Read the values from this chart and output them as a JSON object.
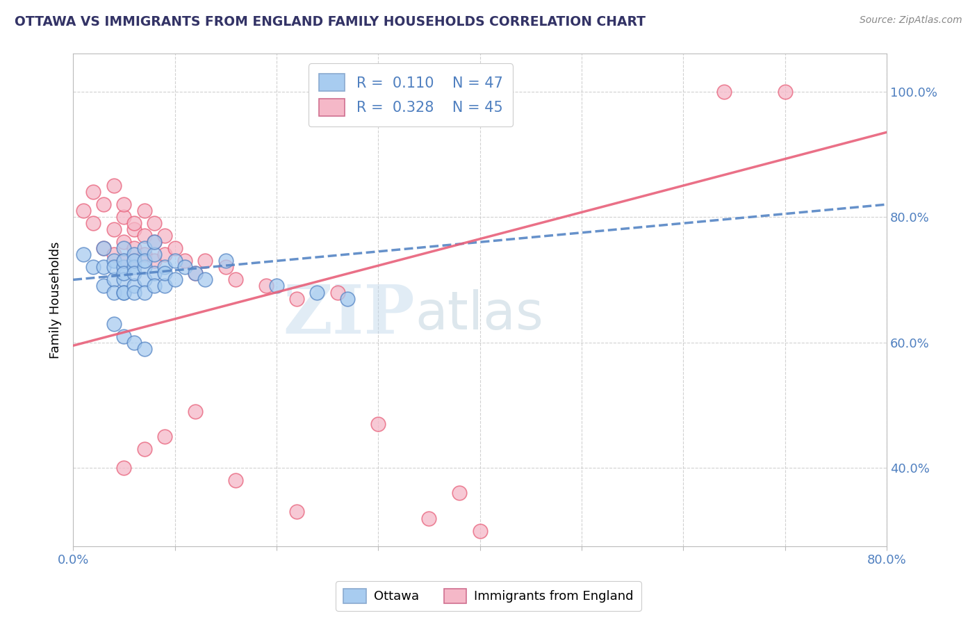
{
  "title": "OTTAWA VS IMMIGRANTS FROM ENGLAND FAMILY HOUSEHOLDS CORRELATION CHART",
  "source": "Source: ZipAtlas.com",
  "ylabel": "Family Households",
  "xmin": 0.0,
  "xmax": 0.8,
  "ymin": 0.275,
  "ymax": 1.06,
  "y_ticks_right": [
    0.4,
    0.6,
    0.8,
    1.0
  ],
  "y_tick_labels_right": [
    "40.0%",
    "60.0%",
    "80.0%",
    "100.0%"
  ],
  "watermark_zip": "ZIP",
  "watermark_atlas": "atlas",
  "blue_color": "#A8CCF0",
  "pink_color": "#F5B8C8",
  "line_blue": "#5585C5",
  "line_pink": "#E8607A",
  "ottawa_points_x": [
    0.01,
    0.02,
    0.03,
    0.03,
    0.03,
    0.04,
    0.04,
    0.04,
    0.04,
    0.05,
    0.05,
    0.05,
    0.05,
    0.05,
    0.05,
    0.05,
    0.06,
    0.06,
    0.06,
    0.06,
    0.06,
    0.06,
    0.07,
    0.07,
    0.07,
    0.07,
    0.07,
    0.08,
    0.08,
    0.08,
    0.08,
    0.09,
    0.09,
    0.09,
    0.1,
    0.1,
    0.11,
    0.12,
    0.13,
    0.15,
    0.2,
    0.24,
    0.27,
    0.04,
    0.05,
    0.06,
    0.07
  ],
  "ottawa_points_y": [
    0.74,
    0.72,
    0.75,
    0.69,
    0.72,
    0.73,
    0.7,
    0.68,
    0.72,
    0.75,
    0.72,
    0.7,
    0.68,
    0.73,
    0.71,
    0.68,
    0.74,
    0.72,
    0.69,
    0.73,
    0.71,
    0.68,
    0.75,
    0.72,
    0.7,
    0.68,
    0.73,
    0.74,
    0.71,
    0.69,
    0.76,
    0.72,
    0.69,
    0.71,
    0.7,
    0.73,
    0.72,
    0.71,
    0.7,
    0.73,
    0.69,
    0.68,
    0.67,
    0.63,
    0.61,
    0.6,
    0.59
  ],
  "england_points_x": [
    0.01,
    0.02,
    0.02,
    0.03,
    0.03,
    0.04,
    0.04,
    0.04,
    0.05,
    0.05,
    0.05,
    0.05,
    0.06,
    0.06,
    0.06,
    0.06,
    0.07,
    0.07,
    0.07,
    0.08,
    0.08,
    0.08,
    0.09,
    0.09,
    0.1,
    0.11,
    0.12,
    0.13,
    0.15,
    0.16,
    0.19,
    0.22,
    0.26,
    0.05,
    0.07,
    0.09,
    0.12,
    0.16,
    0.22,
    0.3,
    0.35,
    0.38,
    0.4,
    0.64,
    0.7
  ],
  "england_points_y": [
    0.81,
    0.84,
    0.79,
    0.82,
    0.75,
    0.78,
    0.74,
    0.85,
    0.8,
    0.76,
    0.73,
    0.82,
    0.78,
    0.75,
    0.73,
    0.79,
    0.77,
    0.74,
    0.81,
    0.76,
    0.73,
    0.79,
    0.74,
    0.77,
    0.75,
    0.73,
    0.71,
    0.73,
    0.72,
    0.7,
    0.69,
    0.67,
    0.68,
    0.4,
    0.43,
    0.45,
    0.49,
    0.38,
    0.33,
    0.47,
    0.32,
    0.36,
    0.3,
    1.0,
    1.0
  ]
}
